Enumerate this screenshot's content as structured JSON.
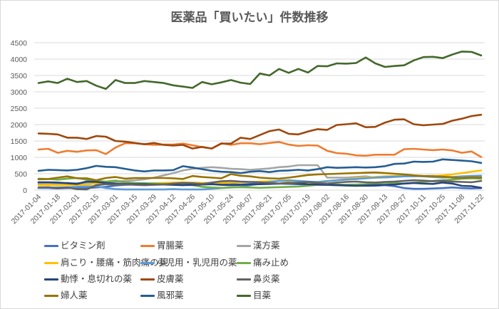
{
  "chart_data": {
    "type": "line",
    "title": "医薬品「買いたい」件数推移",
    "xlabel": "",
    "ylabel": "",
    "ylim": [
      0,
      4500
    ],
    "yticks": [
      0,
      500,
      1000,
      1500,
      2000,
      2500,
      3000,
      3500,
      4000,
      4500
    ],
    "grid": true,
    "legend_position": "bottom",
    "x_tick_labels": [
      "2017-01-04",
      "2017-01-18",
      "2017-02-01",
      "2017-02-15",
      "2017-03-01",
      "2017-03-15",
      "2017-03-29",
      "2017-04-12",
      "2017-04-26",
      "2017-05-10",
      "2017-05-24",
      "2017-06-07",
      "2017-06-21",
      "2017-07-05",
      "2017-07-19",
      "2017-08-02",
      "2017-08-16",
      "2017-08-30",
      "2017-09-13",
      "2017-09-27",
      "2017-10-11",
      "2017-10-25",
      "2017-11-08",
      "2017-11-22"
    ],
    "series": [
      {
        "name": "ビタミン剤",
        "color": "#4472C4",
        "values": [
          60,
          60,
          50,
          60,
          70,
          60,
          80,
          100,
          140,
          160,
          170,
          180,
          190,
          190,
          180,
          170,
          180,
          190,
          200,
          190,
          180,
          170,
          190,
          200,
          190,
          200,
          190,
          180,
          170,
          160,
          160,
          150,
          150,
          140,
          130,
          130,
          150,
          120,
          60,
          40,
          40,
          50,
          60,
          80,
          60,
          50,
          60
        ]
      },
      {
        "name": "胃腸薬",
        "color": "#ED7D31",
        "values": [
          1240,
          1260,
          1140,
          1200,
          1170,
          1210,
          1220,
          1100,
          1300,
          1430,
          1430,
          1400,
          1380,
          1390,
          1390,
          1420,
          1370,
          1310,
          1270,
          1430,
          1380,
          1430,
          1430,
          1400,
          1440,
          1470,
          1390,
          1350,
          1370,
          1360,
          1200,
          1130,
          1110,
          1060,
          1050,
          1080,
          1080,
          1080,
          1250,
          1260,
          1240,
          1220,
          1240,
          1210,
          1140,
          1180,
          1010
        ]
      },
      {
        "name": "漢方薬",
        "color": "#A5A5A5",
        "values": [
          200,
          210,
          200,
          220,
          210,
          220,
          230,
          240,
          260,
          280,
          300,
          330,
          380,
          450,
          520,
          600,
          650,
          680,
          700,
          680,
          650,
          640,
          620,
          640,
          660,
          700,
          720,
          760,
          760,
          760,
          380,
          380,
          380,
          400,
          420,
          380,
          380,
          400,
          420,
          420,
          430,
          440,
          420,
          400,
          380,
          380,
          400
        ]
      },
      {
        "name": "肩こり・腰痛・筋肉痛の薬",
        "color": "#FFC000",
        "values": [
          150,
          160,
          150,
          160,
          150,
          170,
          200,
          220,
          200,
          190,
          180,
          200,
          210,
          220,
          230,
          240,
          230,
          220,
          210,
          220,
          230,
          240,
          250,
          260,
          270,
          280,
          260,
          250,
          240,
          250,
          280,
          300,
          330,
          360,
          380,
          400,
          420,
          430,
          440,
          430,
          420,
          430,
          450,
          480,
          520,
          560,
          600
        ]
      },
      {
        "name": "小児用・乳児用の薬",
        "color": "#5B9BD5",
        "values": [
          60,
          70,
          80,
          90,
          100,
          110,
          120,
          60,
          30,
          20,
          20,
          20,
          20,
          20,
          30,
          20,
          20,
          20,
          40,
          60,
          80,
          100,
          150,
          200,
          250,
          280,
          300,
          280,
          260,
          250,
          270,
          300,
          320,
          340,
          360,
          380,
          400,
          410,
          420,
          430,
          420,
          400,
          380,
          400,
          420,
          430,
          440
        ]
      },
      {
        "name": "痛み止め",
        "color": "#70AD47",
        "values": [
          350,
          340,
          320,
          350,
          370,
          320,
          280,
          260,
          290,
          240,
          220,
          210,
          200,
          190,
          180,
          160,
          150,
          100,
          80,
          70,
          80,
          90,
          80,
          70,
          80,
          90,
          100,
          110,
          130,
          160,
          180,
          170,
          160,
          170,
          180,
          200,
          230,
          220,
          200,
          220,
          250,
          280,
          300,
          320,
          350,
          360,
          350
        ]
      },
      {
        "name": "動悸・息切れの薬",
        "color": "#264478",
        "values": [
          240,
          240,
          230,
          210,
          190,
          260,
          250,
          220,
          200,
          190,
          180,
          180,
          170,
          170,
          160,
          150,
          160,
          170,
          180,
          160,
          150,
          160,
          170,
          180,
          190,
          200,
          220,
          200,
          180,
          170,
          160,
          150,
          140,
          130,
          140,
          150,
          160,
          170,
          200,
          220,
          200,
          190,
          230,
          200,
          130,
          120,
          70
        ]
      },
      {
        "name": "皮膚薬",
        "color": "#9E480E",
        "values": [
          1730,
          1720,
          1700,
          1600,
          1600,
          1560,
          1650,
          1630,
          1500,
          1480,
          1440,
          1400,
          1440,
          1380,
          1360,
          1380,
          1270,
          1320,
          1270,
          1420,
          1420,
          1600,
          1560,
          1680,
          1800,
          1850,
          1720,
          1700,
          1790,
          1860,
          1840,
          1990,
          2010,
          2040,
          1920,
          1930,
          2060,
          2150,
          2160,
          2010,
          1980,
          2000,
          2020,
          2120,
          2180,
          2260,
          2300
        ]
      },
      {
        "name": "鼻炎薬",
        "color": "#636363",
        "values": [
          80,
          90,
          60,
          80,
          30,
          20,
          150,
          180,
          170,
          180,
          160,
          150,
          160,
          170,
          200,
          220,
          210,
          190,
          230,
          270,
          280,
          260,
          250,
          240,
          220,
          200,
          210,
          230,
          250,
          220,
          200,
          230,
          250,
          260,
          240,
          230,
          250,
          260,
          280,
          300,
          290,
          270,
          280,
          260,
          250,
          240,
          280
        ]
      },
      {
        "name": "婦人薬",
        "color": "#997300",
        "values": [
          330,
          340,
          380,
          420,
          360,
          360,
          300,
          370,
          400,
          350,
          370,
          370,
          370,
          370,
          360,
          340,
          430,
          400,
          380,
          360,
          490,
          440,
          420,
          380,
          360,
          350,
          380,
          420,
          460,
          480,
          490,
          500,
          510,
          520,
          530,
          540,
          520,
          500,
          480,
          450,
          430,
          420,
          410,
          380,
          370,
          390,
          380
        ]
      },
      {
        "name": "風邪薬",
        "color": "#255E91",
        "values": [
          590,
          620,
          610,
          600,
          620,
          670,
          740,
          710,
          700,
          650,
          600,
          570,
          600,
          600,
          610,
          730,
          690,
          640,
          590,
          560,
          550,
          520,
          560,
          580,
          550,
          590,
          600,
          620,
          600,
          640,
          700,
          680,
          690,
          700,
          690,
          700,
          730,
          800,
          810,
          870,
          860,
          870,
          940,
          920,
          900,
          880,
          830
        ]
      },
      {
        "name": "目薬",
        "color": "#43682B",
        "values": [
          3270,
          3320,
          3270,
          3400,
          3300,
          3330,
          3190,
          3090,
          3360,
          3270,
          3270,
          3330,
          3300,
          3270,
          3200,
          3160,
          3120,
          3300,
          3230,
          3290,
          3360,
          3280,
          3240,
          3560,
          3500,
          3700,
          3580,
          3700,
          3590,
          3790,
          3780,
          3870,
          3860,
          3880,
          4050,
          3870,
          3760,
          3790,
          3810,
          3960,
          4060,
          4070,
          4030,
          4140,
          4230,
          4220,
          4110
        ]
      }
    ]
  }
}
